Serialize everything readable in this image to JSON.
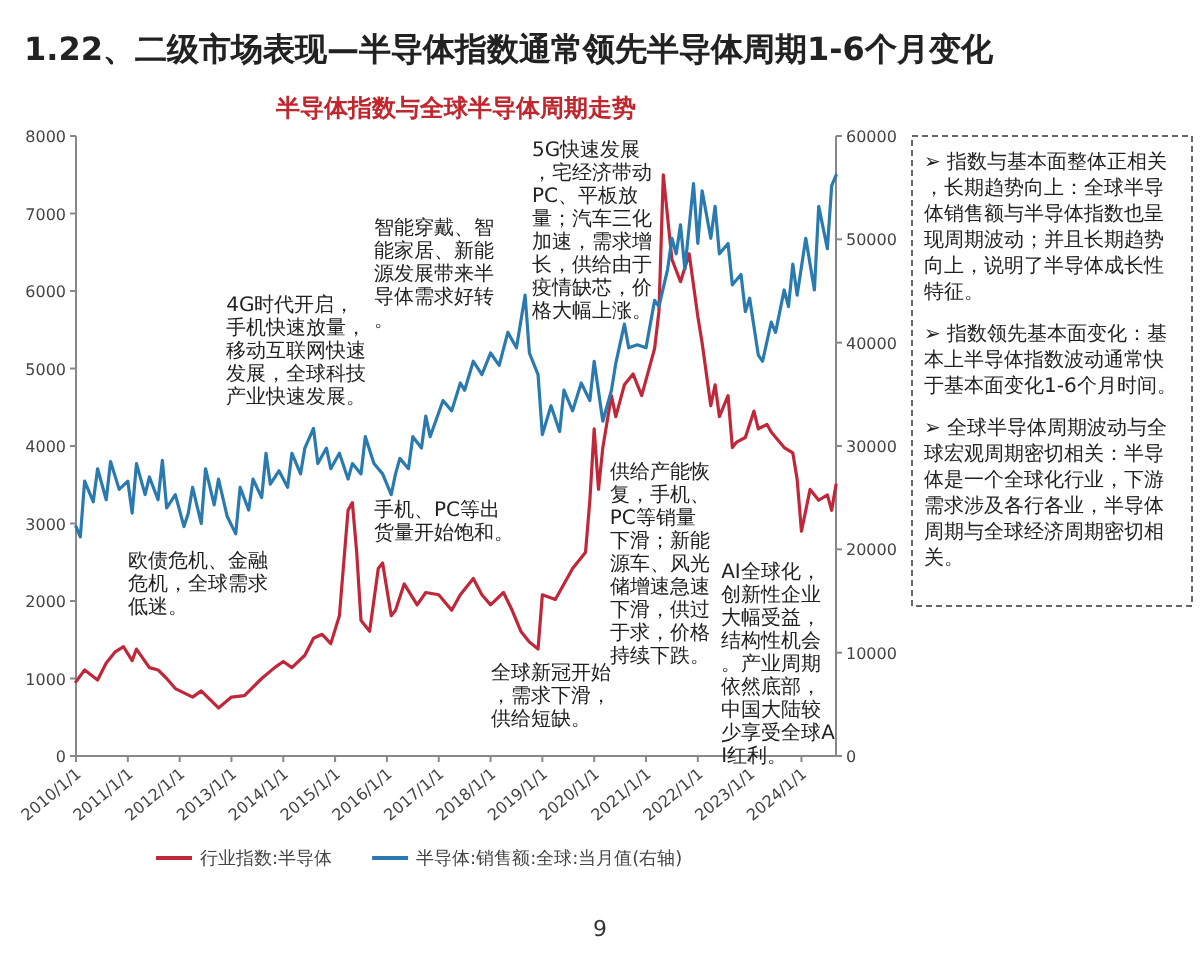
{
  "chart_data": {
    "type": "line",
    "title": "1.22、二级市场表现—半导体指数通常领先半导体周期1-6个月变化",
    "subtitle": "半导体指数与全球半导体周期走势",
    "xlim": [
      "2010-01-01",
      "2024-09-01"
    ],
    "xticks": [
      {
        "value": "2010-01-01",
        "label": "2010/1/1"
      },
      {
        "value": "2011-01-01",
        "label": "2011/1/1"
      },
      {
        "value": "2012-01-01",
        "label": "2012/1/1"
      },
      {
        "value": "2013-01-01",
        "label": "2013/1/1"
      },
      {
        "value": "2014-01-01",
        "label": "2014/1/1"
      },
      {
        "value": "2015-01-01",
        "label": "2015/1/1"
      },
      {
        "value": "2016-01-01",
        "label": "2016/1/1"
      },
      {
        "value": "2017-01-01",
        "label": "2017/1/1"
      },
      {
        "value": "2018-01-01",
        "label": "2018/1/1"
      },
      {
        "value": "2019-01-01",
        "label": "2019/1/1"
      },
      {
        "value": "2020-01-01",
        "label": "2020/1/1"
      },
      {
        "value": "2021-01-01",
        "label": "2021/1/1"
      },
      {
        "value": "2022-01-01",
        "label": "2022/1/1"
      },
      {
        "value": "2023-01-01",
        "label": "2023/1/1"
      },
      {
        "value": "2024-01-01",
        "label": "2024/1/1"
      }
    ],
    "ylim": [
      0,
      8000
    ],
    "yticks": [
      0,
      1000,
      2000,
      3000,
      4000,
      5000,
      6000,
      7000,
      8000
    ],
    "y2lim": [
      0,
      60000
    ],
    "y2ticks": [
      0,
      10000,
      20000,
      30000,
      40000,
      50000,
      60000
    ],
    "legend": "bottom",
    "series": [
      {
        "name": "行业指数:半导体",
        "color": "#c0283a",
        "x": [
          "2010-01",
          "2010-03",
          "2010-06",
          "2010-08",
          "2010-10",
          "2010-12",
          "2011-02",
          "2011-03",
          "2011-06",
          "2011-08",
          "2011-10",
          "2011-12",
          "2012-04",
          "2012-06",
          "2012-08",
          "2012-10",
          "2013-01",
          "2013-04",
          "2013-06",
          "2013-08",
          "2013-11",
          "2014-01",
          "2014-03",
          "2014-06",
          "2014-08",
          "2014-10",
          "2014-12",
          "2015-02",
          "2015-04",
          "2015-05",
          "2015-06",
          "2015-07",
          "2015-09",
          "2015-11",
          "2015-12",
          "2016-02",
          "2016-03",
          "2016-05",
          "2016-08",
          "2016-10",
          "2017-01",
          "2017-04",
          "2017-06",
          "2017-09",
          "2017-11",
          "2018-01",
          "2018-04",
          "2018-06",
          "2018-08",
          "2018-10",
          "2018-12",
          "2019-01",
          "2019-04",
          "2019-06",
          "2019-08",
          "2019-11",
          "2019-12",
          "2020-01",
          "2020-02",
          "2020-03",
          "2020-05",
          "2020-06",
          "2020-08",
          "2020-10",
          "2020-12",
          "2021-03",
          "2021-04",
          "2021-05",
          "2021-07",
          "2021-09",
          "2021-11",
          "2022-01",
          "2022-02",
          "2022-04",
          "2022-05",
          "2022-06",
          "2022-08",
          "2022-09",
          "2022-10",
          "2022-12",
          "2023-02",
          "2023-03",
          "2023-05",
          "2023-06",
          "2023-09",
          "2023-11",
          "2023-12",
          "2024-01",
          "2024-03",
          "2024-05",
          "2024-07",
          "2024-08",
          "2024-09"
        ],
        "values": [
          960,
          1110,
          980,
          1200,
          1340,
          1410,
          1230,
          1380,
          1140,
          1110,
          1000,
          870,
          760,
          840,
          730,
          620,
          760,
          780,
          890,
          1000,
          1140,
          1220,
          1140,
          1300,
          1520,
          1570,
          1450,
          1810,
          3170,
          3270,
          2630,
          1750,
          1610,
          2420,
          2490,
          1810,
          1880,
          2220,
          1950,
          2110,
          2080,
          1880,
          2080,
          2290,
          2080,
          1950,
          2110,
          1880,
          1610,
          1470,
          1380,
          2080,
          2020,
          2220,
          2420,
          2630,
          3300,
          4220,
          3440,
          3980,
          4650,
          4380,
          4790,
          4930,
          4650,
          5260,
          5740,
          7500,
          6410,
          6120,
          6480,
          5670,
          5330,
          4520,
          4790,
          4380,
          4650,
          3980,
          4050,
          4110,
          4450,
          4220,
          4280,
          4180,
          3980,
          3910,
          3570,
          2900,
          3440,
          3300,
          3370,
          3170,
          3500
        ]
      },
      {
        "name": "半导体:销售额:全球:当月值(右轴)",
        "color": "#2a7ab0",
        "axis": "y2",
        "x": [
          "2010-01",
          "2010-02",
          "2010-03",
          "2010-05",
          "2010-06",
          "2010-08",
          "2010-09",
          "2010-11",
          "2011-01",
          "2011-02",
          "2011-03",
          "2011-05",
          "2011-06",
          "2011-08",
          "2011-09",
          "2011-10",
          "2011-12",
          "2012-02",
          "2012-03",
          "2012-04",
          "2012-06",
          "2012-07",
          "2012-09",
          "2012-10",
          "2012-12",
          "2013-02",
          "2013-03",
          "2013-05",
          "2013-06",
          "2013-08",
          "2013-09",
          "2013-10",
          "2013-12",
          "2014-02",
          "2014-03",
          "2014-05",
          "2014-06",
          "2014-08",
          "2014-09",
          "2014-11",
          "2014-12",
          "2015-02",
          "2015-04",
          "2015-05",
          "2015-07",
          "2015-08",
          "2015-10",
          "2015-12",
          "2016-02",
          "2016-03",
          "2016-04",
          "2016-06",
          "2016-07",
          "2016-09",
          "2016-10",
          "2016-11",
          "2017-02",
          "2017-04",
          "2017-06",
          "2017-07",
          "2017-09",
          "2017-11",
          "2018-01",
          "2018-03",
          "2018-05",
          "2018-07",
          "2018-09",
          "2018-10",
          "2018-12",
          "2019-01",
          "2019-03",
          "2019-05",
          "2019-06",
          "2019-08",
          "2019-10",
          "2019-12",
          "2020-01",
          "2020-03",
          "2020-05",
          "2020-06",
          "2020-08",
          "2020-09",
          "2020-11",
          "2021-01",
          "2021-03",
          "2021-04",
          "2021-06",
          "2021-07",
          "2021-08",
          "2021-09",
          "2021-10",
          "2021-12",
          "2022-01",
          "2022-02",
          "2022-04",
          "2022-05",
          "2022-06",
          "2022-08",
          "2022-09",
          "2022-11",
          "2022-12",
          "2023-01",
          "2023-03",
          "2023-04",
          "2023-06",
          "2023-07",
          "2023-09",
          "2023-10",
          "2023-11",
          "2023-12",
          "2024-02",
          "2024-04",
          "2024-05",
          "2024-07",
          "2024-08",
          "2024-09"
        ],
        "values": [
          22200,
          21200,
          26600,
          24600,
          27800,
          24800,
          28500,
          25800,
          26600,
          23500,
          28300,
          25300,
          27000,
          24800,
          28600,
          24000,
          25300,
          22200,
          23500,
          26000,
          22500,
          27800,
          24300,
          26800,
          23200,
          21500,
          26000,
          23800,
          26800,
          25000,
          29300,
          26300,
          27600,
          26000,
          29300,
          27300,
          29800,
          31700,
          28300,
          29800,
          27800,
          29300,
          26800,
          28300,
          27300,
          30900,
          28300,
          27300,
          25300,
          27300,
          28800,
          27800,
          30900,
          29800,
          32900,
          30900,
          34400,
          33400,
          36100,
          35400,
          38200,
          36900,
          39000,
          37800,
          41000,
          39500,
          44600,
          39000,
          36900,
          31100,
          33900,
          31400,
          35400,
          33400,
          36100,
          34400,
          38200,
          32400,
          35400,
          38000,
          41800,
          39500,
          39800,
          39500,
          44100,
          43500,
          47100,
          50100,
          48600,
          51400,
          47100,
          55400,
          49600,
          54700,
          50100,
          53200,
          48600,
          49600,
          45600,
          46600,
          43000,
          44300,
          38800,
          38200,
          42000,
          41000,
          45100,
          43500,
          47600,
          44600,
          50100,
          45100,
          53200,
          49100,
          55200,
          56200
        ]
      }
    ],
    "annotations": [
      "欧债危机、金融危机，全球需求低迷。",
      "4G时代开启，手机快速放量，移动互联网快速发展，全球科技产业快速发展。",
      "手机、PC等出货量开始饱和。",
      "智能穿戴、智能家居、新能源发展带来半导体需求好转。",
      "全球新冠开始，需求下滑，供给短缺。",
      "5G快速发展，宅经济带动PC、平板放量；汽车三化加速，需求增长，供给由于疫情缺芯，价格大幅上涨。",
      "供给产能恢复，手机、PC等销量下滑；新能源车、风光储增速急速下滑，供过于求，价格持续下跌。",
      "AI全球化，创新性企业大幅受益，结构性机会。产业周期依然底部，中国大陆较少享受全球AI红利。",
      "➢ 指数与基本面整体正相关，长期趋势向上：全球半导体销售额与半导体指数也呈现周期波动；并且长期趋势向上，说明了半导体成长性特征。",
      "➢ 指数领先基本面变化：基本上半导体指数波动通常快于基本面变化1-6个月时间。",
      "➢ 全球半导体周期波动与全球宏观周期密切相关：半导体是一个全球化行业，下游需求涉及各行各业，半导体周期与全球经济周期密切相关。",
      "9"
    ]
  }
}
